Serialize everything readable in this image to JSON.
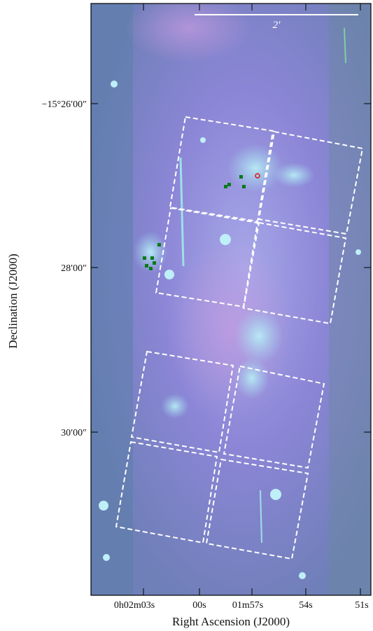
{
  "figure": {
    "scale_bar_label": "2′",
    "x_axis": {
      "label": "Right Ascension (J2000)",
      "ticks": [
        "0h02m03s",
        "00s",
        "01m57s",
        "54s",
        "51s"
      ]
    },
    "y_axis": {
      "label": "Declination (J2000)",
      "ticks": [
        "−15°26′00″",
        "28′00″",
        "30′00″"
      ]
    }
  }
}
